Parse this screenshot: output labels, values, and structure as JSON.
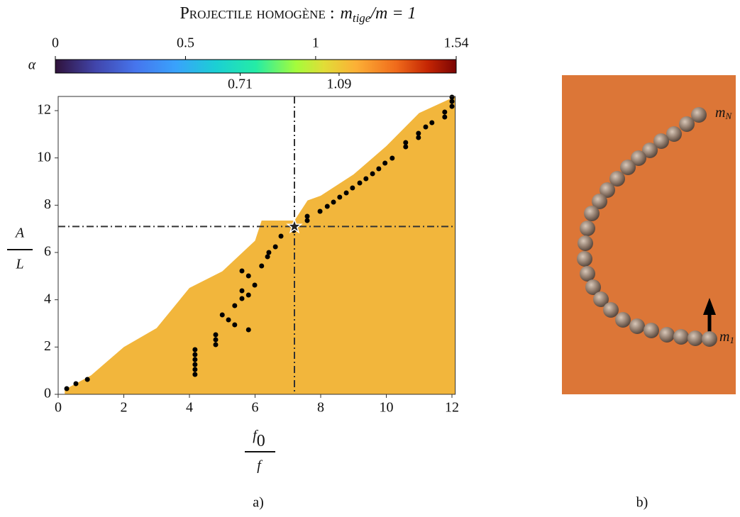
{
  "chart_data": {
    "type": "scatter",
    "title": "Projectile homogène :",
    "title_formula": {
      "base": "m",
      "sub": "tige",
      "rest": "/m = 1"
    },
    "xlabel": {
      "numerator": "f",
      "numerator_sub": "0",
      "denominator": "f"
    },
    "ylabel": {
      "numerator": "A",
      "denominator": "L"
    },
    "xlim": [
      0,
      12.1
    ],
    "ylim": [
      0,
      12.6
    ],
    "xticks": [
      0,
      2,
      4,
      6,
      8,
      10,
      12
    ],
    "yticks": [
      0,
      2,
      4,
      6,
      8,
      10,
      12
    ],
    "colorbar": {
      "label": "α",
      "lim": [
        0,
        1.54
      ],
      "ticks": [
        0,
        0.5,
        1,
        1.54
      ],
      "minor_ticks": [
        0.71,
        1.09
      ]
    },
    "region": {
      "color": "#f2b63c",
      "x": [
        0.2,
        1,
        2,
        3,
        4,
        5,
        6,
        6.2,
        7.2,
        7.6,
        8,
        9,
        10,
        11,
        12.1
      ],
      "y": [
        0.2,
        0.8,
        2,
        2.8,
        4.5,
        5.2,
        6.5,
        7.35,
        7.35,
        8.2,
        8.4,
        9.3,
        10.5,
        11.9,
        12.6
      ]
    },
    "highlight": {
      "x": 7.2,
      "y": 7.1
    },
    "series": [
      {
        "color": "#000000",
        "x": [
          0.26,
          0.54,
          0.89,
          4.17,
          4.17,
          4.17,
          4.17,
          4.17,
          4.17,
          4.8,
          4.8,
          4.8,
          5.0,
          5.19,
          5.38,
          5.38,
          5.6,
          5.6,
          5.6,
          5.8,
          5.8,
          5.8,
          5.99,
          6.2,
          6.38,
          6.42,
          6.62,
          6.79,
          7.18,
          7.18,
          7.59,
          7.59,
          7.98,
          8.2,
          8.39,
          8.58,
          8.78,
          8.97,
          9.19,
          9.38,
          9.58,
          9.77,
          9.96,
          10.18,
          10.59,
          10.59,
          10.98,
          10.98,
          11.2,
          11.39,
          11.78,
          11.78,
          12,
          12,
          12
        ],
        "values": [
          0.24,
          0.45,
          0.63,
          1.89,
          1.68,
          1.47,
          1.26,
          1.05,
          0.84,
          2.52,
          2.31,
          2.1,
          3.36,
          3.15,
          3.75,
          2.94,
          4.05,
          5.22,
          4.38,
          2.73,
          5.01,
          4.2,
          4.62,
          5.43,
          5.82,
          6.0,
          6.24,
          6.69,
          6.93,
          7.08,
          7.53,
          7.35,
          7.74,
          7.95,
          8.13,
          8.34,
          8.52,
          8.73,
          8.94,
          9.12,
          9.33,
          9.54,
          9.78,
          9.99,
          10.65,
          10.47,
          11.04,
          10.86,
          11.31,
          11.49,
          11.94,
          11.73,
          12.57,
          12.39,
          12.18
        ]
      }
    ],
    "panel_labels": [
      "a)",
      "b)"
    ],
    "chain_labels": {
      "last": {
        "base": "m",
        "sub": "N"
      },
      "first": {
        "base": "m",
        "sub": "1"
      }
    }
  }
}
